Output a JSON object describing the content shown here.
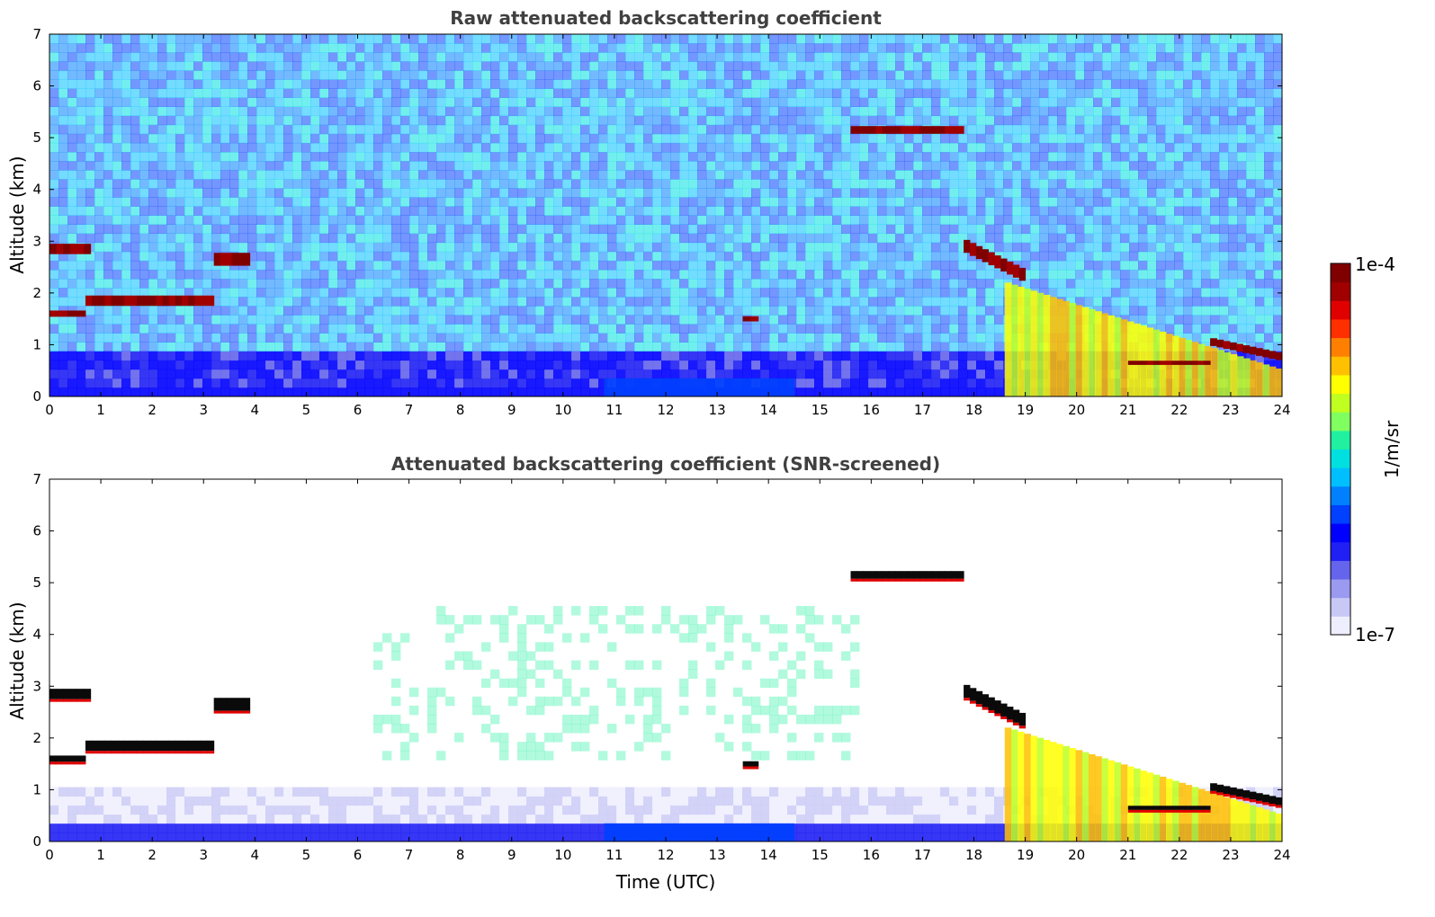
{
  "colors": {
    "colormap": [
      "#eeeefe",
      "#c8c8f6",
      "#9a9af0",
      "#6464ec",
      "#2020f4",
      "#0000ff",
      "#0040ff",
      "#0080ff",
      "#00bfff",
      "#00e0e0",
      "#20f0a0",
      "#80ff60",
      "#c0ff20",
      "#ffff00",
      "#ffc000",
      "#ff8000",
      "#ff3000",
      "#e00000",
      "#a00000",
      "#800000"
    ],
    "cloud_core": "#0a0a0a"
  },
  "chart_data": [
    {
      "type": "heatmap",
      "title": "Raw attenuated backscattering coefficient",
      "xlabel": "",
      "ylabel": "Altitude (km)",
      "xlim": [
        0,
        24
      ],
      "ylim": [
        0,
        7
      ],
      "xticks": [
        "0",
        "1",
        "2",
        "3",
        "4",
        "5",
        "6",
        "7",
        "8",
        "9",
        "10",
        "11",
        "12",
        "13",
        "14",
        "15",
        "16",
        "17",
        "18",
        "19",
        "20",
        "21",
        "22",
        "23",
        "24"
      ],
      "yticks": [
        "0",
        "1",
        "2",
        "3",
        "4",
        "5",
        "6",
        "7"
      ],
      "background_noise": "speckled blue",
      "features": [
        {
          "kind": "cloud",
          "t0": 0.0,
          "t1": 0.8,
          "alt": 2.85,
          "thickness": 0.2,
          "level": 1.0
        },
        {
          "kind": "cloud",
          "t0": 0.0,
          "t1": 0.7,
          "alt": 1.6,
          "thickness": 0.12,
          "level": 1.0
        },
        {
          "kind": "cloud",
          "t0": 0.7,
          "t1": 3.2,
          "alt": 1.85,
          "thickness": 0.2,
          "level": 1.0
        },
        {
          "kind": "cloud",
          "t0": 3.2,
          "t1": 3.9,
          "alt": 2.65,
          "thickness": 0.25,
          "level": 1.0
        },
        {
          "kind": "cloud",
          "t0": 13.5,
          "t1": 13.8,
          "alt": 1.5,
          "thickness": 0.1,
          "level": 1.0
        },
        {
          "kind": "cloud",
          "t0": 15.6,
          "t1": 17.8,
          "alt": 5.15,
          "thickness": 0.15,
          "level": 1.0
        },
        {
          "kind": "cloud",
          "t0": 17.8,
          "t1": 19.0,
          "alt_start": 2.9,
          "alt_end": 2.3,
          "thickness": 0.25,
          "level": 1.0
        },
        {
          "kind": "precip",
          "t0": 18.6,
          "t1": 24.0,
          "alt_start": 2.2,
          "alt_end": 0.5,
          "level": 0.7
        },
        {
          "kind": "cloud",
          "t0": 21.0,
          "t1": 22.6,
          "alt": 0.65,
          "thickness": 0.08,
          "level": 1.0
        },
        {
          "kind": "cloud",
          "t0": 22.6,
          "t1": 24.0,
          "alt_start": 1.05,
          "alt_end": 0.75,
          "thickness": 0.15,
          "level": 1.0
        },
        {
          "kind": "boundary_layer",
          "t0": 10.8,
          "t1": 14.5,
          "alt": 0.35,
          "level": 0.3
        }
      ]
    },
    {
      "type": "heatmap",
      "title": "Attenuated backscattering coefficient (SNR-screened)",
      "xlabel": "Time (UTC)",
      "ylabel": "Altitude (km)",
      "xlim": [
        0,
        24
      ],
      "ylim": [
        0,
        7
      ],
      "xticks": [
        "0",
        "1",
        "2",
        "3",
        "4",
        "5",
        "6",
        "7",
        "8",
        "9",
        "10",
        "11",
        "12",
        "13",
        "14",
        "15",
        "16",
        "17",
        "18",
        "19",
        "20",
        "21",
        "22",
        "23",
        "24"
      ],
      "yticks": [
        "0",
        "1",
        "2",
        "3",
        "4",
        "5",
        "6",
        "7"
      ],
      "background_noise": "screened sparse",
      "features": [
        {
          "kind": "cloud",
          "t0": 0.0,
          "t1": 0.8,
          "alt": 2.85,
          "thickness": 0.2,
          "level": 1.0
        },
        {
          "kind": "cloud",
          "t0": 0.0,
          "t1": 0.7,
          "alt": 1.6,
          "thickness": 0.12,
          "level": 1.0
        },
        {
          "kind": "cloud",
          "t0": 0.7,
          "t1": 3.2,
          "alt": 1.85,
          "thickness": 0.2,
          "level": 1.0
        },
        {
          "kind": "cloud",
          "t0": 3.2,
          "t1": 3.9,
          "alt": 2.65,
          "thickness": 0.25,
          "level": 1.0
        },
        {
          "kind": "cloud",
          "t0": 13.5,
          "t1": 13.8,
          "alt": 1.5,
          "thickness": 0.1,
          "level": 1.0
        },
        {
          "kind": "cloud",
          "t0": 15.6,
          "t1": 17.8,
          "alt": 5.15,
          "thickness": 0.15,
          "level": 1.0
        },
        {
          "kind": "cloud",
          "t0": 17.8,
          "t1": 19.0,
          "alt_start": 2.9,
          "alt_end": 2.3,
          "thickness": 0.25,
          "level": 1.0
        },
        {
          "kind": "precip",
          "t0": 18.6,
          "t1": 24.0,
          "alt_start": 2.2,
          "alt_end": 0.5,
          "level": 0.7
        },
        {
          "kind": "cloud",
          "t0": 21.0,
          "t1": 22.6,
          "alt": 0.65,
          "thickness": 0.08,
          "level": 1.0
        },
        {
          "kind": "cloud",
          "t0": 22.6,
          "t1": 24.0,
          "alt_start": 1.05,
          "alt_end": 0.75,
          "thickness": 0.15,
          "level": 1.0
        },
        {
          "kind": "boundary_layer",
          "t0": 10.8,
          "t1": 14.5,
          "alt": 0.35,
          "level": 0.3
        }
      ]
    }
  ],
  "colorbar": {
    "label": "1/m/sr",
    "max_label": "1e-4",
    "min_label": "1e-7",
    "range": [
      1e-07,
      0.0001
    ],
    "scale": "log"
  }
}
